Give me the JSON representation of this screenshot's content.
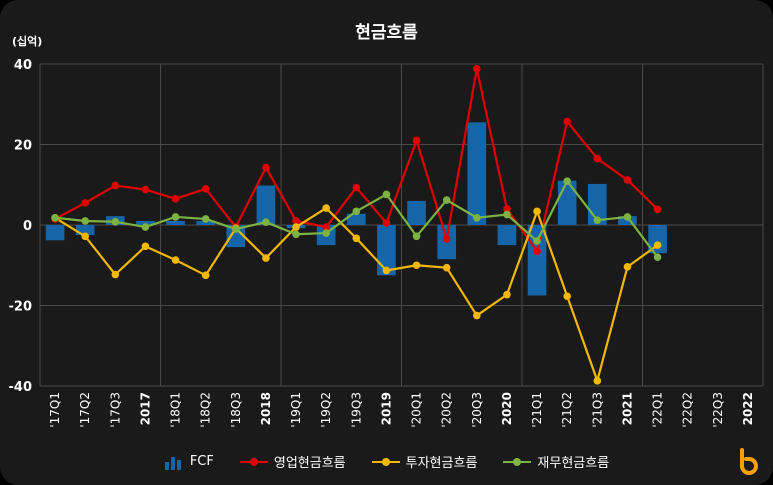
{
  "chart_data": {
    "type": "bar+line",
    "title": "현금흐름",
    "unit_label": "(십억)",
    "ylim": [
      -40,
      40
    ],
    "yticks": [
      "40",
      "20",
      "0",
      "-20",
      "-40"
    ],
    "categories": [
      "'17Q1",
      "'17Q2",
      "'17Q3",
      "2017",
      "'18Q1",
      "'18Q2",
      "'18Q3",
      "2018",
      "'19Q1",
      "'19Q2",
      "'19Q3",
      "2019",
      "'20Q1",
      "'20Q2",
      "'20Q3",
      "2020",
      "'21Q1",
      "'21Q2",
      "'21Q3",
      "2021",
      "'22Q1",
      "'22Q2",
      "'22Q3",
      "2022"
    ],
    "bold_categories": [
      "2017",
      "2018",
      "2019",
      "2020",
      "2021",
      "2022"
    ],
    "bar_series": {
      "name": "FCF",
      "color": "#1565a8",
      "values": [
        -3.8,
        -2.5,
        2.2,
        1.0,
        1.0,
        1.0,
        -5.5,
        9.8,
        -0.8,
        -5.0,
        2.8,
        -12.5,
        6.0,
        -8.5,
        25.5,
        -5.0,
        -17.5,
        11.0,
        10.2,
        2.2,
        -7.0,
        null,
        null,
        null
      ]
    },
    "series": [
      {
        "name": "영업현금흐름",
        "color": "#e00000",
        "values": [
          1.5,
          5.5,
          9.8,
          8.8,
          6.5,
          9.0,
          -0.5,
          14.3,
          1.0,
          -0.5,
          9.3,
          0.5,
          21.0,
          -3.5,
          38.8,
          4.0,
          -6.5,
          25.7,
          16.5,
          11.2,
          3.9,
          null,
          null,
          null
        ]
      },
      {
        "name": "투자현금흐름",
        "color": "#f5b800",
        "values": [
          1.8,
          -2.8,
          -12.3,
          -5.3,
          -8.7,
          -12.5,
          -0.8,
          -8.2,
          -0.5,
          4.2,
          -3.3,
          -11.3,
          -10.0,
          -10.6,
          -22.5,
          -17.3,
          3.4,
          -17.7,
          -38.7,
          -10.4,
          -5.0,
          null,
          null,
          null
        ]
      },
      {
        "name": "재무현금흐름",
        "color": "#7cb342",
        "values": [
          1.8,
          1.0,
          0.8,
          -0.5,
          2.0,
          1.5,
          -1.0,
          0.7,
          -2.3,
          -2.0,
          3.4,
          7.6,
          -2.8,
          6.2,
          1.8,
          2.6,
          -4.0,
          10.9,
          1.2,
          2.0,
          -8.0,
          null,
          null,
          null
        ]
      }
    ],
    "legend": [
      {
        "label": "FCF",
        "kind": "bar",
        "color": "#1565a8"
      },
      {
        "label": "영업현금흐름",
        "kind": "line",
        "color": "#e00000"
      },
      {
        "label": "투자현금흐름",
        "kind": "line",
        "color": "#f5b800"
      },
      {
        "label": "재무현금흐름",
        "kind": "line",
        "color": "#7cb342"
      }
    ],
    "legend_position": "bottom",
    "grid": true
  }
}
